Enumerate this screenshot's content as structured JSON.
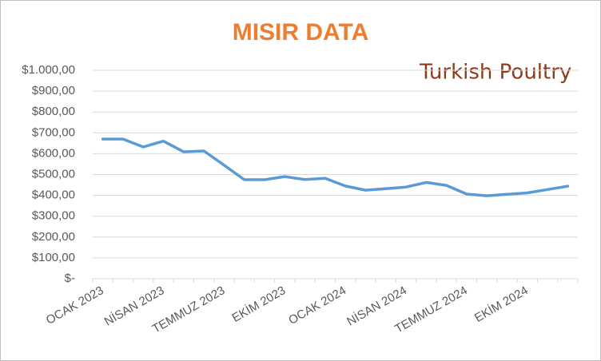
{
  "chart_data": {
    "type": "line",
    "title": "MISIR DATA",
    "logo": "Turkish Poultry",
    "categories": [
      "OCAK 2023",
      null,
      null,
      "NİSAN 2023",
      null,
      null,
      "TEMMUZ 2023",
      null,
      null,
      "EKİM 2023",
      null,
      null,
      "OCAK 2024",
      null,
      null,
      "NİSAN 2024",
      null,
      null,
      "TEMMUZ 2024",
      null,
      null,
      "EKİM 2024",
      null,
      null
    ],
    "series": [
      {
        "name": "MISIR",
        "color": "#5b9bd5",
        "values": [
          670,
          670,
          632,
          660,
          609,
          613,
          545,
          475,
          475,
          490,
          476,
          482,
          445,
          425,
          432,
          440,
          462,
          448,
          406,
          398,
          405,
          412,
          428,
          444
        ]
      }
    ],
    "ylim": [
      0,
      1000
    ],
    "yticks": [
      {
        "value": 0,
        "label": "$-"
      },
      {
        "value": 100,
        "label": "$100,00"
      },
      {
        "value": 200,
        "label": "$200,00"
      },
      {
        "value": 300,
        "label": "$300,00"
      },
      {
        "value": 400,
        "label": "$400,00"
      },
      {
        "value": 500,
        "label": "$500,00"
      },
      {
        "value": 600,
        "label": "$600,00"
      },
      {
        "value": 700,
        "label": "$700,00"
      },
      {
        "value": 800,
        "label": "$800,00"
      },
      {
        "value": 900,
        "label": "$900,00"
      },
      {
        "value": 1000,
        "label": "$1.000,00"
      }
    ],
    "grid": true
  }
}
